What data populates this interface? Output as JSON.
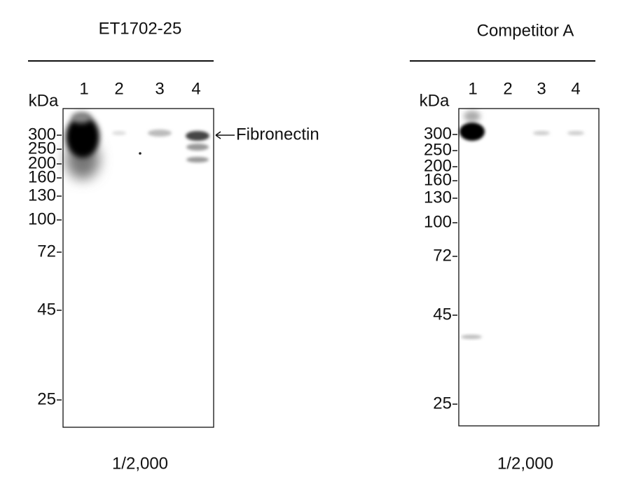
{
  "panels": [
    {
      "title": "ET1702-25",
      "unit": "kDa",
      "lanes": [
        "1",
        "2",
        "3",
        "4"
      ],
      "markers": [
        "300",
        "250",
        "200",
        "160",
        "130",
        "100",
        "72",
        "45",
        "25"
      ],
      "annotation": "Fibronectin",
      "dilution": "1/2,000"
    },
    {
      "title": "Competitor A",
      "unit": "kDa",
      "lanes": [
        "1",
        "2",
        "3",
        "4"
      ],
      "markers": [
        "300",
        "250",
        "200",
        "160",
        "130",
        "100",
        "72",
        "45",
        "25"
      ],
      "dilution": "1/2,000"
    }
  ]
}
